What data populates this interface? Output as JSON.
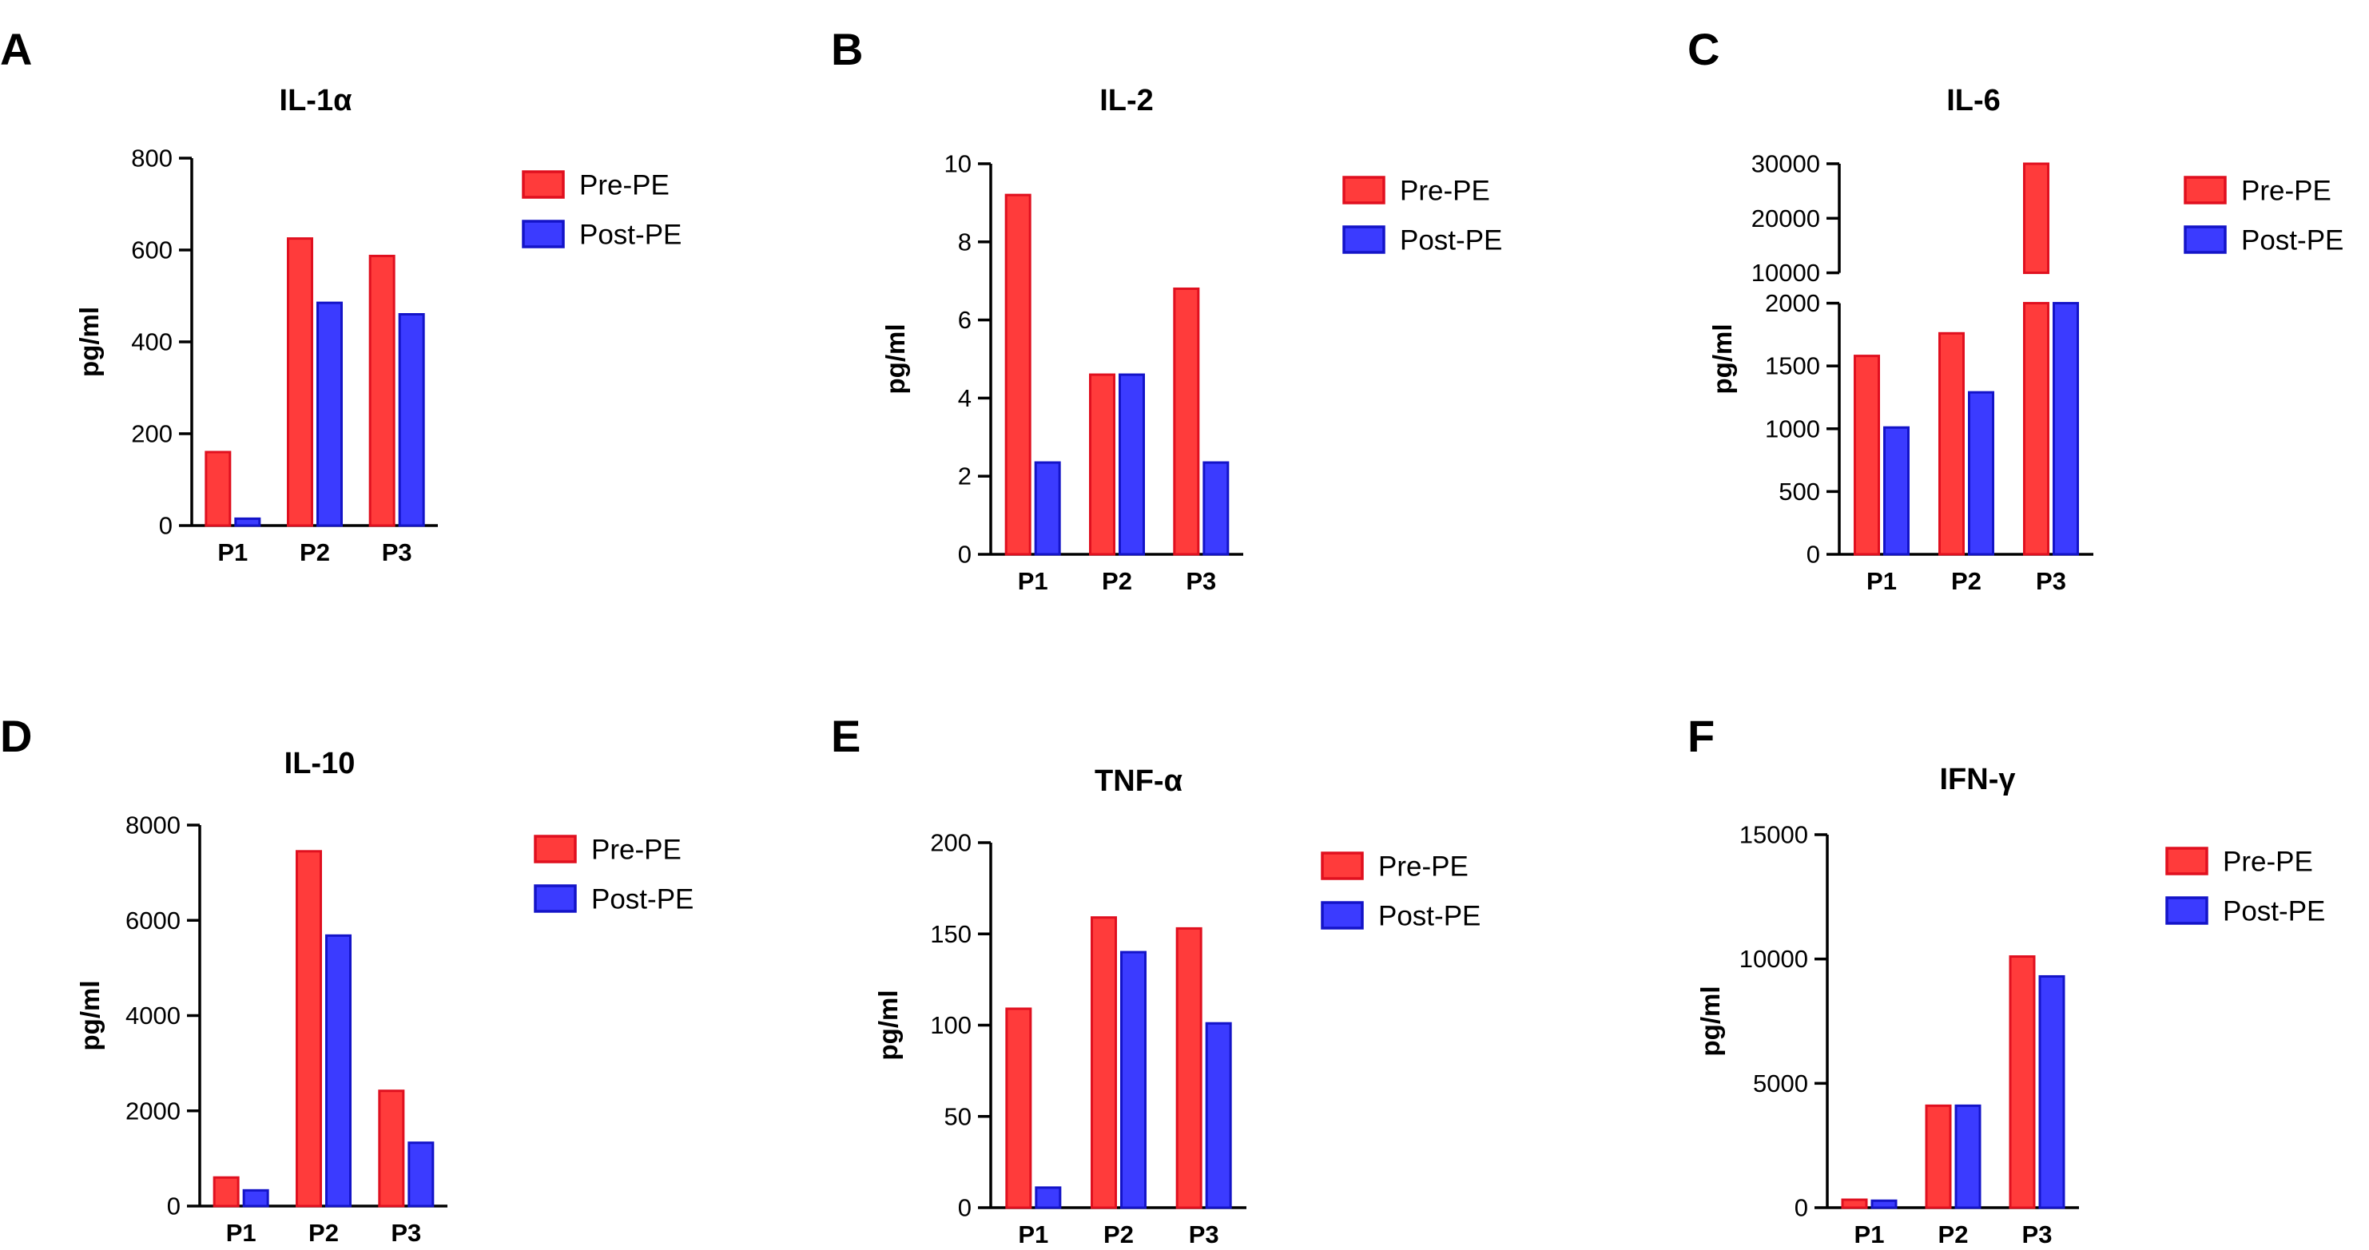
{
  "legend_labels": [
    "Pre-PE",
    "Post-PE"
  ],
  "colors": {
    "pre": "#ff3b3b",
    "pre_stroke": "#e0101f",
    "post": "#3b3bff",
    "post_stroke": "#1414c8",
    "axis": "#000000"
  },
  "chart_data": [
    {
      "panel_letter": "A",
      "type": "bar",
      "title": "IL-1α",
      "ylabel": "pg/ml",
      "xlabel": "",
      "categories": [
        "P1",
        "P2",
        "P3"
      ],
      "series": [
        {
          "name": "Pre-PE",
          "values": [
            160,
            625,
            587
          ]
        },
        {
          "name": "Post-PE",
          "values": [
            15,
            485,
            460
          ]
        }
      ],
      "ylim": [
        0,
        800
      ],
      "yticks": [
        "0",
        "200",
        "400",
        "600",
        "800"
      ],
      "legend": "right"
    },
    {
      "panel_letter": "B",
      "type": "bar",
      "title": "IL-2",
      "ylabel": "pg/ml",
      "xlabel": "",
      "categories": [
        "P1",
        "P2",
        "P3"
      ],
      "series": [
        {
          "name": "Pre-PE",
          "values": [
            9.2,
            4.6,
            6.8
          ]
        },
        {
          "name": "Post-PE",
          "values": [
            2.35,
            4.6,
            2.35
          ]
        }
      ],
      "ylim": [
        0,
        10
      ],
      "yticks": [
        "0",
        "2",
        "4",
        "6",
        "8",
        "10"
      ],
      "legend": "right"
    },
    {
      "panel_letter": "C",
      "type": "bar",
      "title": "IL-6",
      "ylabel": "pg/ml",
      "xlabel": "",
      "categories": [
        "P1",
        "P2",
        "P3"
      ],
      "series": [
        {
          "name": "Pre-PE",
          "values": [
            1580,
            1760,
            30000
          ]
        },
        {
          "name": "Post-PE",
          "values": [
            1010,
            1290,
            2000
          ]
        }
      ],
      "ylim": [
        0,
        30000
      ],
      "axis_break": {
        "lower": [
          0,
          2000
        ],
        "upper": [
          10000,
          30000
        ]
      },
      "yticks_lower": [
        "0",
        "500",
        "1000",
        "1500",
        "2000"
      ],
      "yticks_upper": [
        "10000",
        "20000",
        "30000"
      ],
      "legend": "right"
    },
    {
      "panel_letter": "D",
      "type": "bar",
      "title": "IL-10",
      "ylabel": "pg/ml",
      "xlabel": "",
      "categories": [
        "P1",
        "P2",
        "P3"
      ],
      "series": [
        {
          "name": "Pre-PE",
          "values": [
            600,
            7450,
            2420
          ]
        },
        {
          "name": "Post-PE",
          "values": [
            330,
            5680,
            1330
          ]
        }
      ],
      "ylim": [
        0,
        8000
      ],
      "yticks": [
        "0",
        "2000",
        "4000",
        "6000",
        "8000"
      ],
      "legend": "right"
    },
    {
      "panel_letter": "E",
      "type": "bar",
      "title": "TNF-α",
      "ylabel": "pg/ml",
      "xlabel": "",
      "categories": [
        "P1",
        "P2",
        "P3"
      ],
      "series": [
        {
          "name": "Pre-PE",
          "values": [
            109,
            159,
            153
          ]
        },
        {
          "name": "Post-PE",
          "values": [
            11,
            140,
            101
          ]
        }
      ],
      "ylim": [
        0,
        200
      ],
      "yticks": [
        "0",
        "50",
        "100",
        "150",
        "200"
      ],
      "legend": "right"
    },
    {
      "panel_letter": "F",
      "type": "bar",
      "title": "IFN-γ",
      "ylabel": "pg/ml",
      "xlabel": "",
      "categories": [
        "P1",
        "P2",
        "P3"
      ],
      "series": [
        {
          "name": "Pre-PE",
          "values": [
            320,
            4100,
            10100
          ]
        },
        {
          "name": "Post-PE",
          "values": [
            280,
            4100,
            9300
          ]
        }
      ],
      "ylim": [
        0,
        15000
      ],
      "yticks": [
        "0",
        "5000",
        "10000",
        "15000"
      ],
      "legend": "right"
    }
  ]
}
